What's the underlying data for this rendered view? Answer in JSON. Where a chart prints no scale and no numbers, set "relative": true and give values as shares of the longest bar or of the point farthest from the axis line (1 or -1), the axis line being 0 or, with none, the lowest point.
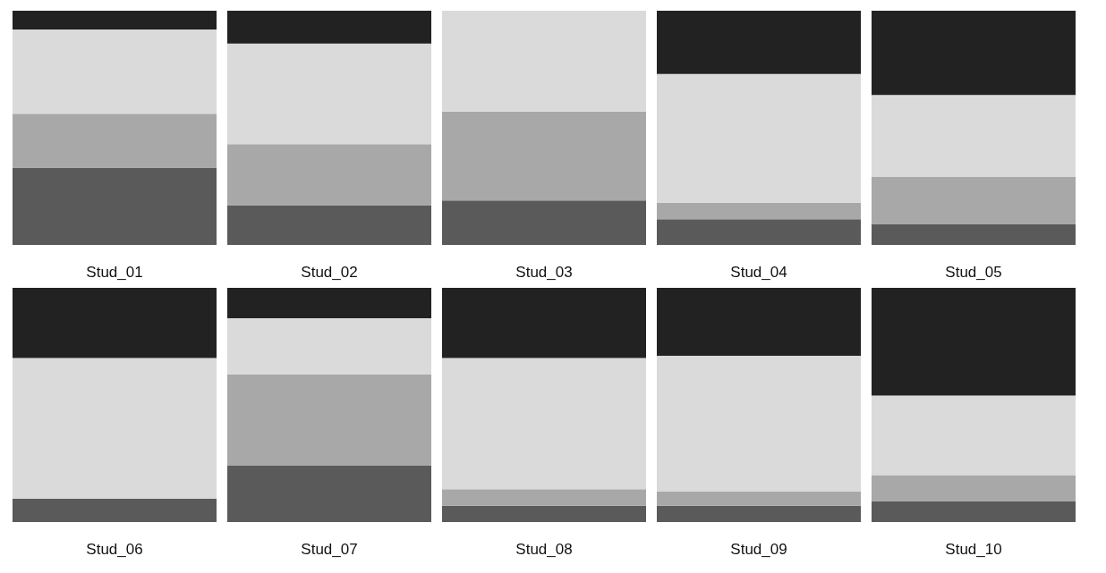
{
  "chart_data": [
    {
      "type": "bar",
      "stacked": true,
      "relative": true,
      "xlabel": "Stud_01",
      "categories": [
        null
      ],
      "series": [
        {
          "color": "#5a5a5a",
          "values": [
            0.33
          ]
        },
        {
          "color": "#a8a8a8",
          "values": [
            0.23
          ]
        },
        {
          "color": "#dadada",
          "values": [
            0.36
          ]
        },
        {
          "color": "#222222",
          "values": [
            0.08
          ]
        }
      ]
    },
    {
      "type": "bar",
      "stacked": true,
      "relative": true,
      "xlabel": "Stud_02",
      "categories": [
        null
      ],
      "series": [
        {
          "color": "#5a5a5a",
          "values": [
            0.17
          ]
        },
        {
          "color": "#a8a8a8",
          "values": [
            0.26
          ]
        },
        {
          "color": "#dadada",
          "values": [
            0.43
          ]
        },
        {
          "color": "#222222",
          "values": [
            0.14
          ]
        }
      ]
    },
    {
      "type": "bar",
      "stacked": true,
      "relative": true,
      "xlabel": "Stud_03",
      "categories": [
        null
      ],
      "series": [
        {
          "color": "#5a5a5a",
          "values": [
            0.19
          ]
        },
        {
          "color": "#a8a8a8",
          "values": [
            0.38
          ]
        },
        {
          "color": "#dadada",
          "values": [
            0.43
          ]
        },
        {
          "color": "#222222",
          "values": [
            0
          ]
        }
      ]
    },
    {
      "type": "bar",
      "stacked": true,
      "relative": true,
      "xlabel": "Stud_04",
      "categories": [
        null
      ],
      "series": [
        {
          "color": "#5a5a5a",
          "values": [
            0.11
          ]
        },
        {
          "color": "#a8a8a8",
          "values": [
            0.07
          ]
        },
        {
          "color": "#dadada",
          "values": [
            0.55
          ]
        },
        {
          "color": "#222222",
          "values": [
            0.27
          ]
        }
      ]
    },
    {
      "type": "bar",
      "stacked": true,
      "relative": true,
      "xlabel": "Stud_05",
      "categories": [
        null
      ],
      "series": [
        {
          "color": "#5a5a5a",
          "values": [
            0.09
          ]
        },
        {
          "color": "#a8a8a8",
          "values": [
            0.2
          ]
        },
        {
          "color": "#dadada",
          "values": [
            0.35
          ]
        },
        {
          "color": "#222222",
          "values": [
            0.36
          ]
        }
      ]
    },
    {
      "type": "bar",
      "stacked": true,
      "relative": true,
      "xlabel": "Stud_06",
      "categories": [
        null
      ],
      "series": [
        {
          "color": "#5a5a5a",
          "values": [
            0.1
          ]
        },
        {
          "color": "#a8a8a8",
          "values": [
            0
          ]
        },
        {
          "color": "#dadada",
          "values": [
            0.6
          ]
        },
        {
          "color": "#222222",
          "values": [
            0.3
          ]
        }
      ]
    },
    {
      "type": "bar",
      "stacked": true,
      "relative": true,
      "xlabel": "Stud_07",
      "categories": [
        null
      ],
      "series": [
        {
          "color": "#5a5a5a",
          "values": [
            0.24
          ]
        },
        {
          "color": "#a8a8a8",
          "values": [
            0.39
          ]
        },
        {
          "color": "#dadada",
          "values": [
            0.24
          ]
        },
        {
          "color": "#222222",
          "values": [
            0.13
          ]
        }
      ]
    },
    {
      "type": "bar",
      "stacked": true,
      "relative": true,
      "xlabel": "Stud_08",
      "categories": [
        null
      ],
      "series": [
        {
          "color": "#5a5a5a",
          "values": [
            0.07
          ]
        },
        {
          "color": "#a8a8a8",
          "values": [
            0.07
          ]
        },
        {
          "color": "#dadada",
          "values": [
            0.56
          ]
        },
        {
          "color": "#222222",
          "values": [
            0.3
          ]
        }
      ]
    },
    {
      "type": "bar",
      "stacked": true,
      "relative": true,
      "xlabel": "Stud_09",
      "categories": [
        null
      ],
      "series": [
        {
          "color": "#5a5a5a",
          "values": [
            0.07
          ]
        },
        {
          "color": "#a8a8a8",
          "values": [
            0.06
          ]
        },
        {
          "color": "#dadada",
          "values": [
            0.58
          ]
        },
        {
          "color": "#222222",
          "values": [
            0.29
          ]
        }
      ]
    },
    {
      "type": "bar",
      "stacked": true,
      "relative": true,
      "xlabel": "Stud_10",
      "categories": [
        null
      ],
      "series": [
        {
          "color": "#5a5a5a",
          "values": [
            0.09
          ]
        },
        {
          "color": "#a8a8a8",
          "values": [
            0.11
          ]
        },
        {
          "color": "#dadada",
          "values": [
            0.34
          ]
        },
        {
          "color": "#222222",
          "values": [
            0.46
          ]
        }
      ]
    }
  ]
}
